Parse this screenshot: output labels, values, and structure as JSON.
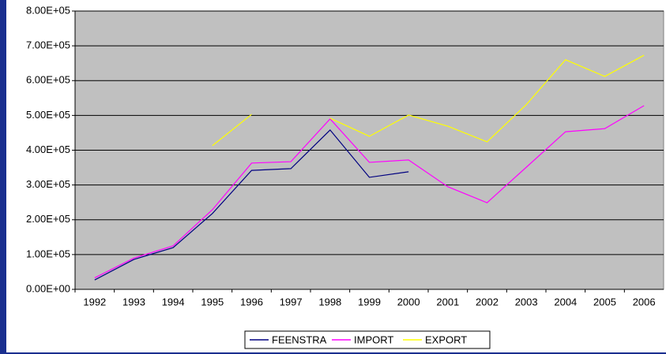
{
  "chart_data": {
    "type": "line",
    "categories": [
      "1992",
      "1993",
      "1994",
      "1995",
      "1996",
      "1997",
      "1998",
      "1999",
      "2000",
      "2001",
      "2002",
      "2003",
      "2004",
      "2005",
      "2006"
    ],
    "series": [
      {
        "name": "FEENSTRA",
        "color": "#000080",
        "values": [
          27000,
          86000,
          120000,
          218000,
          342000,
          347000,
          458000,
          322000,
          338000,
          null,
          null,
          null,
          null,
          null,
          null
        ]
      },
      {
        "name": "IMPORT",
        "color": "#ff00ff",
        "values": [
          33000,
          90000,
          125000,
          229000,
          363000,
          367000,
          490000,
          365000,
          372000,
          295000,
          249000,
          351000,
          453000,
          462000,
          528000
        ]
      },
      {
        "name": "EXPORT",
        "color": "#ffff00",
        "values": [
          null,
          null,
          null,
          413000,
          503000,
          null,
          492000,
          440000,
          501000,
          469000,
          424000,
          531000,
          660000,
          612000,
          673000
        ]
      }
    ],
    "ylim": [
      0,
      800000
    ],
    "yticks": [
      {
        "value": 0,
        "label": "0.00E+00"
      },
      {
        "value": 100000,
        "label": "1.00E+05"
      },
      {
        "value": 200000,
        "label": "2.00E+05"
      },
      {
        "value": 300000,
        "label": "3.00E+05"
      },
      {
        "value": 400000,
        "label": "4.00E+05"
      },
      {
        "value": 500000,
        "label": "5.00E+05"
      },
      {
        "value": 600000,
        "label": "6.00E+05"
      },
      {
        "value": 700000,
        "label": "7.00E+05"
      },
      {
        "value": 800000,
        "label": "8.00E+05"
      }
    ],
    "grid": true,
    "legend": "bottom"
  }
}
